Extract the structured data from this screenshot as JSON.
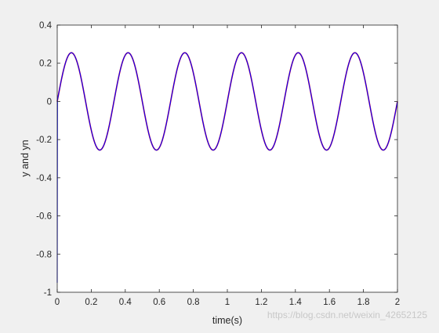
{
  "chart_data": {
    "type": "line",
    "title": "",
    "xlabel": "time(s)",
    "ylabel": "y and yn",
    "xlim": [
      0,
      2
    ],
    "ylim": [
      -1,
      0.4
    ],
    "xticks": [
      "0",
      "0.2",
      "0.4",
      "0.6",
      "0.8",
      "1",
      "1.2",
      "1.4",
      "1.6",
      "1.8",
      "2"
    ],
    "yticks": [
      "0.4",
      "0.2",
      "0",
      "-0.2",
      "-0.4",
      "-0.6",
      "-0.8",
      "-1"
    ],
    "grid": false,
    "legend": "none",
    "series": [
      {
        "color": "#ff0000",
        "x": [
          0,
          0.25,
          0.5,
          0.75,
          1.0,
          1.25,
          1.5,
          1.75,
          2.0
        ],
        "y": [
          0,
          -0.255,
          0,
          0.255,
          0,
          -0.255,
          0,
          0.255,
          0
        ],
        "note_visible": "sine of amplitude 0.255, period 0.333 s, mostly hidden behind blue"
      },
      {
        "color": "#0000ff",
        "amplitude": 0.255,
        "frequency_hz": 3,
        "initial_transient_y": -0.95
      }
    ]
  },
  "watermark": "https://blog.csdn.net/weixin_42652125"
}
